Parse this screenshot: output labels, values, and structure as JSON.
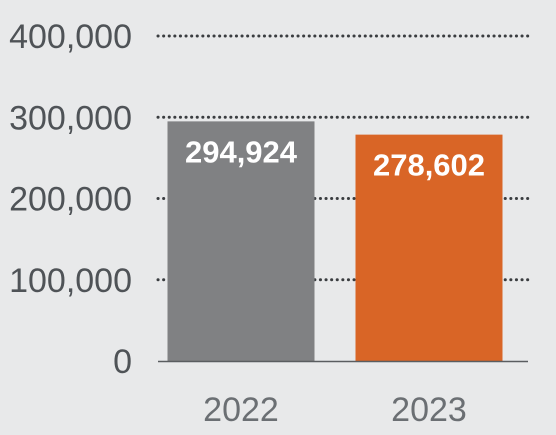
{
  "chart_data": {
    "type": "bar",
    "title": "",
    "xlabel": "",
    "ylabel": "",
    "categories": [
      "2022",
      "2023"
    ],
    "values": [
      294924,
      278602
    ],
    "value_labels": [
      "294,924",
      "278,602"
    ],
    "ylim": [
      0,
      400000
    ],
    "yticks": [
      0,
      100000,
      200000,
      300000,
      400000
    ],
    "ytick_labels": [
      "0",
      "100,000",
      "200,000",
      "300,000",
      "400,000"
    ],
    "bar_colors": [
      "#808183",
      "#d96526"
    ],
    "grid": true,
    "grid_style": "dotted",
    "legend": "none"
  }
}
